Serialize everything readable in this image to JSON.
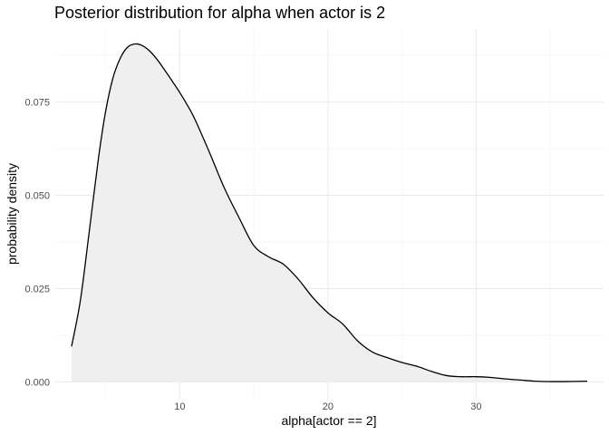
{
  "chart_data": {
    "type": "area",
    "title": "Posterior distribution for alpha when actor is 2",
    "xlabel": "alpha[actor == 2]",
    "ylabel": "probability density",
    "xlim": [
      1.6,
      38.6
    ],
    "ylim": [
      -0.0045,
      0.0945
    ],
    "x_ticks": [
      10,
      20,
      30
    ],
    "x_tick_labels": [
      "10",
      "20",
      "30"
    ],
    "x_minor_ticks": [
      5,
      15,
      25,
      35
    ],
    "y_ticks": [
      0.0,
      0.025,
      0.05,
      0.075
    ],
    "y_tick_labels": [
      "0.000",
      "0.025",
      "0.050",
      "0.075"
    ],
    "y_minor_ticks": [
      0.0125,
      0.0375,
      0.0625,
      0.0875
    ],
    "grid": true,
    "legend": "none",
    "fill_color": "#efefef",
    "line_color": "#000000",
    "x": [
      2.7,
      3.3,
      3.9,
      4.5,
      5.0,
      5.5,
      6.0,
      6.5,
      7.0,
      7.5,
      8.0,
      8.5,
      9.0,
      9.5,
      10.0,
      10.5,
      11.0,
      12.0,
      13.0,
      14.0,
      15.0,
      16.0,
      17.0,
      18.0,
      19.0,
      20.0,
      21.0,
      22.0,
      23.0,
      24.0,
      25.0,
      26.0,
      27.0,
      28.0,
      29.0,
      30.0,
      31.0,
      32.0,
      33.0,
      34.0,
      35.0,
      36.0,
      37.5
    ],
    "y": [
      0.0095,
      0.022,
      0.0405,
      0.0595,
      0.0725,
      0.0815,
      0.0868,
      0.0897,
      0.0905,
      0.09,
      0.0885,
      0.0862,
      0.0834,
      0.0805,
      0.0775,
      0.0742,
      0.0705,
      0.0615,
      0.052,
      0.044,
      0.0365,
      0.0335,
      0.0315,
      0.0275,
      0.0225,
      0.0185,
      0.0155,
      0.011,
      0.008,
      0.0065,
      0.0052,
      0.0042,
      0.0028,
      0.0017,
      0.0014,
      0.0014,
      0.0012,
      0.0008,
      0.0005,
      0.0002,
      0.0001,
      0.0001,
      0.0002
    ]
  }
}
